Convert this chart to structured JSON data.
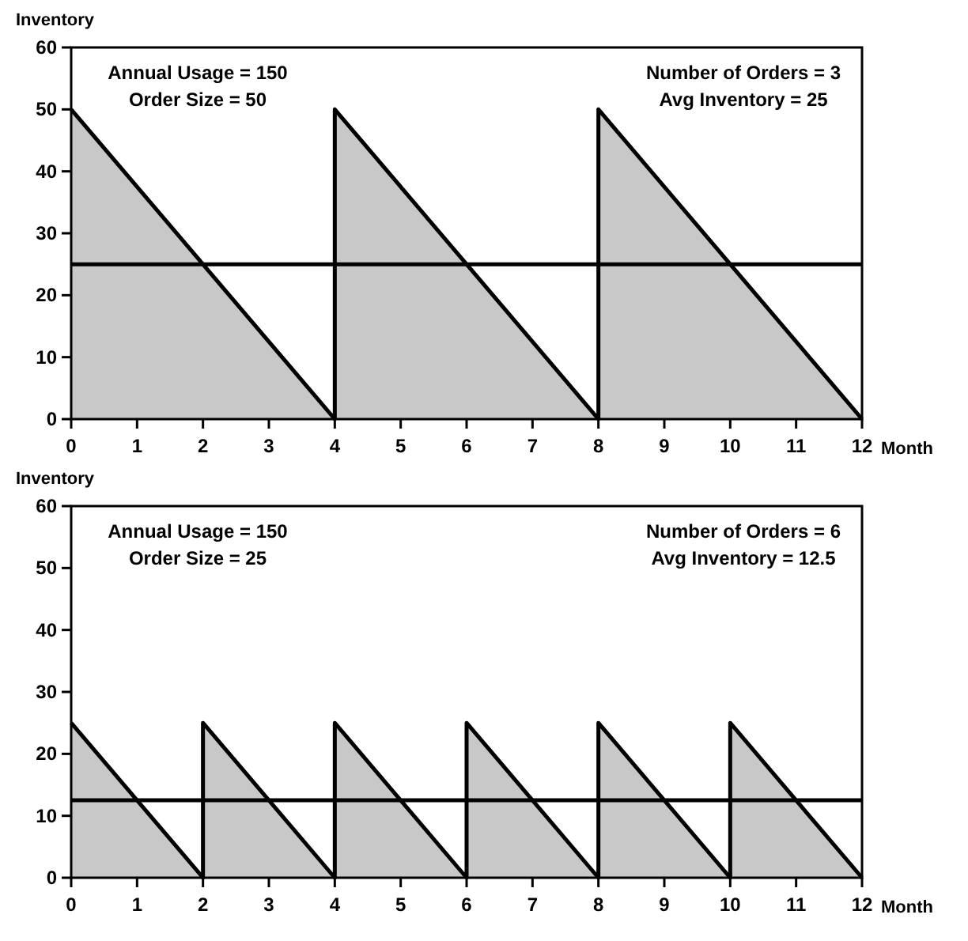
{
  "chart_data": [
    {
      "type": "area",
      "ylabel": "Inventory",
      "xlabel": "Month",
      "xlim": [
        0,
        12
      ],
      "xticks": [
        0,
        1,
        2,
        3,
        4,
        5,
        6,
        7,
        8,
        9,
        10,
        11,
        12
      ],
      "ylim": [
        0,
        60
      ],
      "yticks": [
        0,
        10,
        20,
        30,
        40,
        50,
        60
      ],
      "series": [
        {
          "color": "#c8c8c8",
          "x": [
            0,
            4,
            4,
            8,
            8,
            12
          ],
          "values": [
            50,
            0,
            50,
            0,
            50,
            0
          ]
        }
      ],
      "ref_lines": [
        {
          "axis": "y",
          "value": 25,
          "color": "#000000"
        }
      ],
      "annotations": [
        "Annual Usage = 150",
        "Order Size = 50",
        "Number of Orders = 3",
        "Avg Inventory = 25"
      ]
    },
    {
      "type": "area",
      "ylabel": "Inventory",
      "xlabel": "Month",
      "xlim": [
        0,
        12
      ],
      "xticks": [
        0,
        1,
        2,
        3,
        4,
        5,
        6,
        7,
        8,
        9,
        10,
        11,
        12
      ],
      "ylim": [
        0,
        60
      ],
      "yticks": [
        0,
        10,
        20,
        30,
        40,
        50,
        60
      ],
      "series": [
        {
          "color": "#c8c8c8",
          "x": [
            0,
            2,
            2,
            4,
            4,
            6,
            6,
            8,
            8,
            10,
            10,
            12
          ],
          "values": [
            25,
            0,
            25,
            0,
            25,
            0,
            25,
            0,
            25,
            0,
            25,
            0
          ]
        }
      ],
      "ref_lines": [
        {
          "axis": "y",
          "value": 12.5,
          "color": "#000000"
        }
      ],
      "annotations": [
        "Annual Usage = 150",
        "Order Size = 25",
        "Number of Orders = 6",
        "Avg Inventory = 12.5"
      ]
    }
  ]
}
